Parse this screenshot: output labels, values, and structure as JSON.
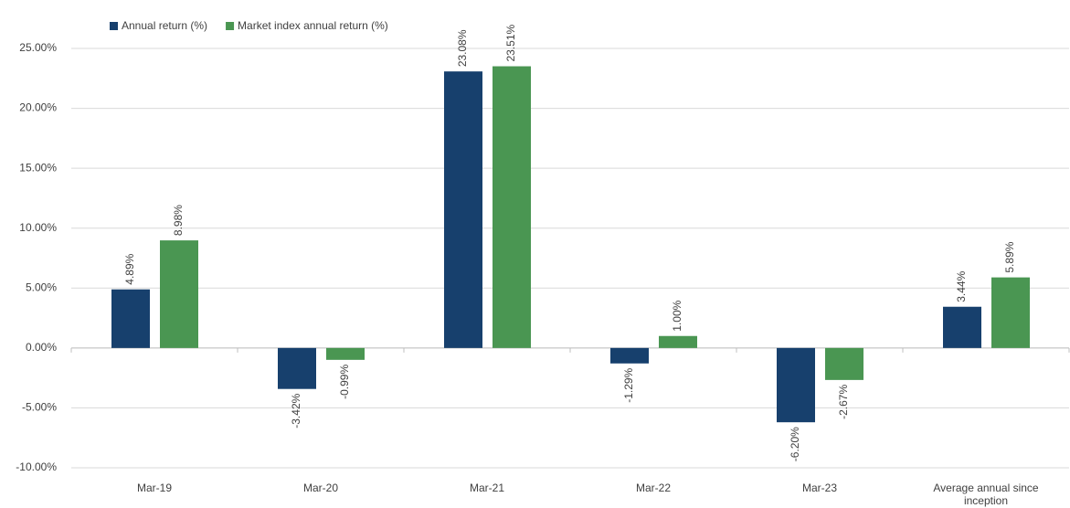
{
  "chart_data": {
    "type": "bar",
    "categories": [
      "Mar-19",
      "Mar-20",
      "Mar-21",
      "Mar-22",
      "Mar-23",
      "Average annual since inception"
    ],
    "series": [
      {
        "name": "Annual return (%)",
        "color": "#17406d",
        "values": [
          4.89,
          -3.42,
          23.08,
          -1.29,
          -6.2,
          3.44
        ],
        "value_labels": [
          "4.89%",
          "-3.42%",
          "23.08%",
          "-1.29%",
          "-6.20%",
          "3.44%"
        ]
      },
      {
        "name": "Market index annual return (%)",
        "color": "#4a9652",
        "values": [
          8.98,
          -0.99,
          23.51,
          1.0,
          -2.67,
          5.89
        ],
        "value_labels": [
          "8.98%",
          "-0.99%",
          "23.51%",
          "1.00%",
          "-2.67%",
          "5.89%"
        ]
      }
    ],
    "ylim": [
      -10,
      25
    ],
    "yticks": [
      {
        "value": -10,
        "label": "-10.00%"
      },
      {
        "value": -5,
        "label": "-5.00%"
      },
      {
        "value": 0,
        "label": "0.00%"
      },
      {
        "value": 5,
        "label": "5.00%"
      },
      {
        "value": 10,
        "label": "10.00%"
      },
      {
        "value": 15,
        "label": "15.00%"
      },
      {
        "value": 20,
        "label": "20.00%"
      },
      {
        "value": 25,
        "label": "25.00%"
      }
    ],
    "grid": true,
    "legend": "top-left"
  }
}
